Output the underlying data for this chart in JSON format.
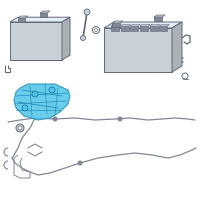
{
  "bg_color": "#ffffff",
  "highlight_color": "#4fc3e8",
  "part_color": "#c8d0d8",
  "part_color_dark": "#808898",
  "part_color_edge": "#606878",
  "wire_color": "#808898",
  "fig_width": 2.0,
  "fig_height": 2.0,
  "dpi": 100
}
